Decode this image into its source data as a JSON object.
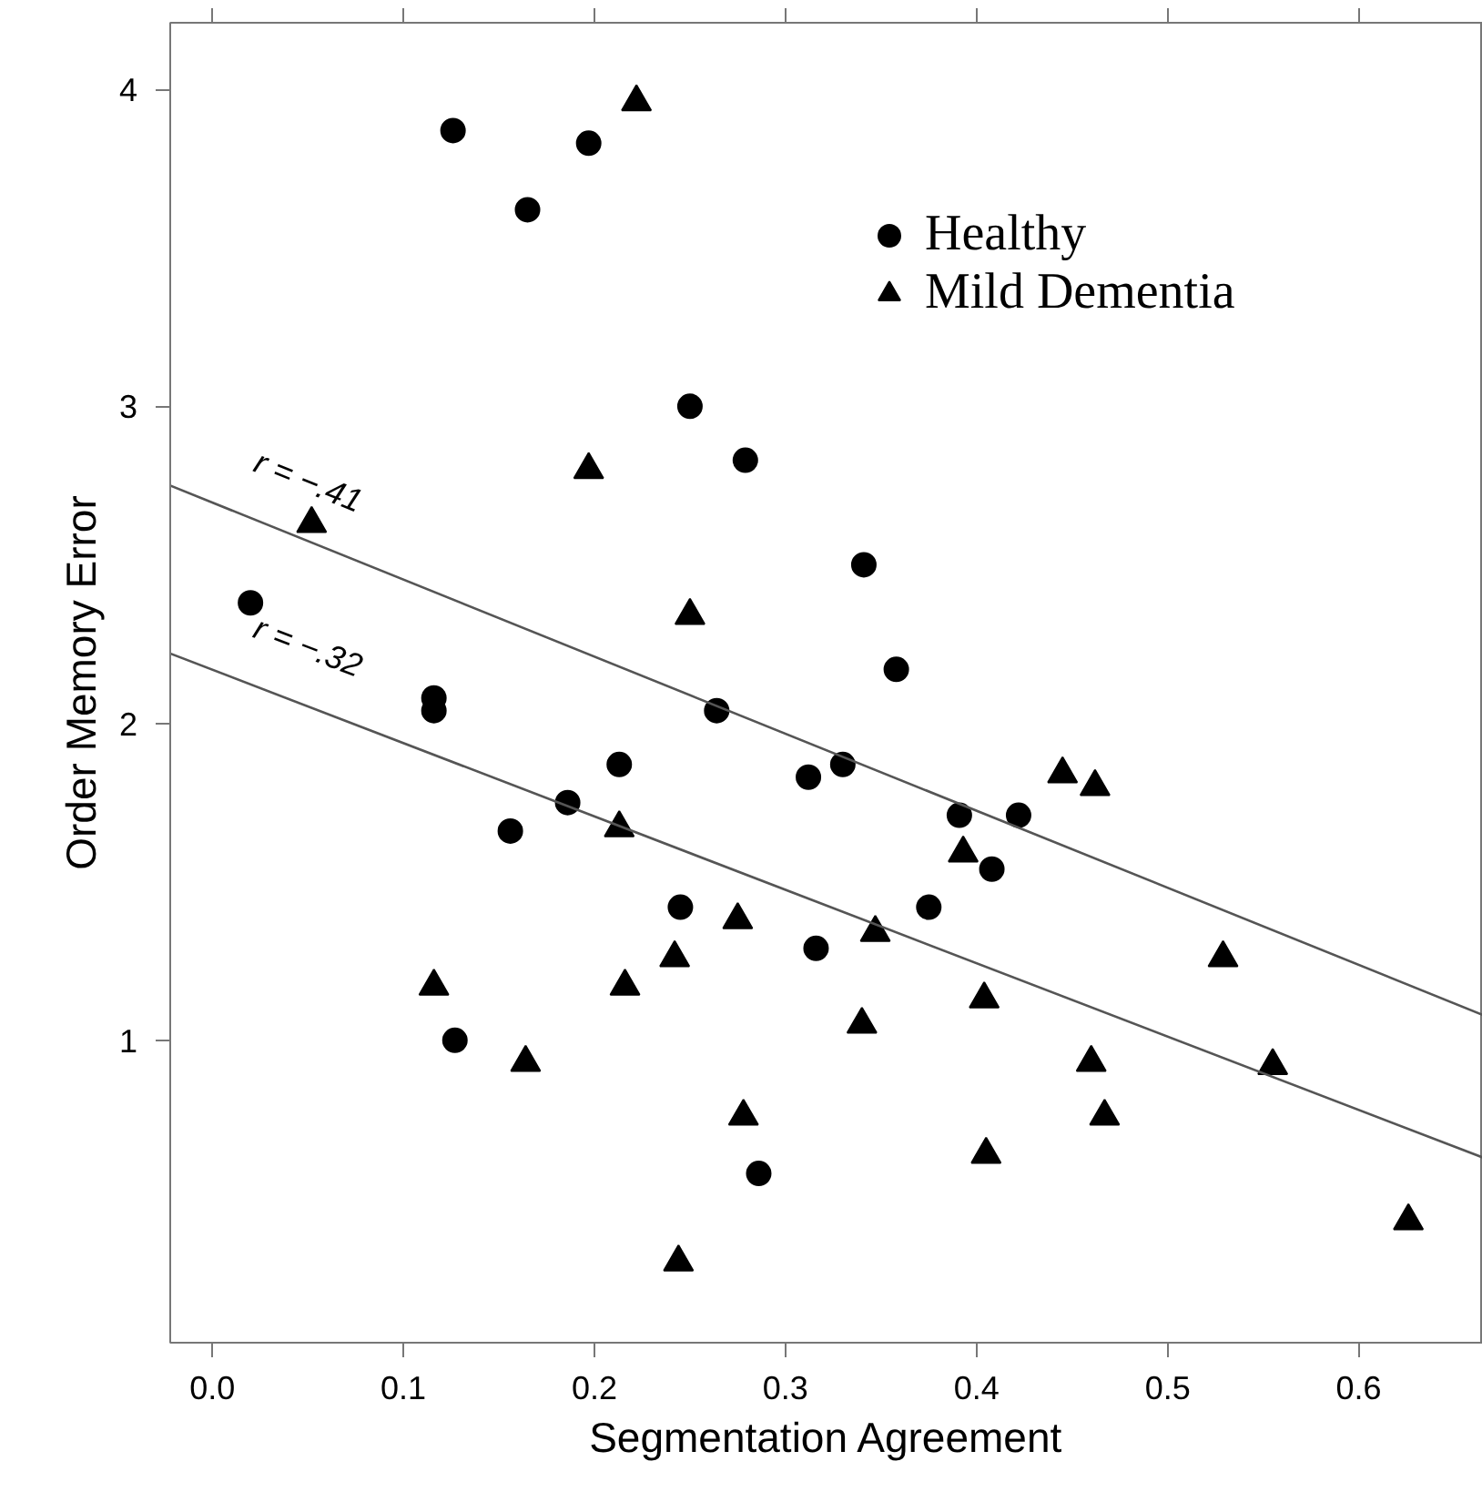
{
  "chart_data": {
    "type": "scatter",
    "xlabel": "Segmentation Agreement",
    "ylabel": "Order Memory Error",
    "xlim": [
      -0.022,
      0.665
    ],
    "ylim": [
      0.046,
      4.21
    ],
    "xticks": [
      {
        "value": 0.0,
        "label": "0.0"
      },
      0.1,
      0.2,
      0.3,
      0.4,
      0.5,
      0.6
    ],
    "yticks": [
      1,
      2,
      3,
      4
    ],
    "grid": false,
    "legend": "top right",
    "series": [
      {
        "name": "Healthy",
        "color": "#000000",
        "marker": "circle",
        "x": [
          0.126,
          0.197,
          0.165,
          0.25,
          0.279,
          0.02,
          0.341,
          0.358,
          0.116,
          0.116,
          0.264,
          0.213,
          0.312,
          0.186,
          0.156,
          0.245,
          0.316,
          0.127,
          0.286,
          0.33,
          0.391,
          0.422,
          0.408,
          0.375
        ],
        "values": [
          3.87,
          3.83,
          3.62,
          3.0,
          2.83,
          2.38,
          2.5,
          2.17,
          2.08,
          2.04,
          2.04,
          1.87,
          1.83,
          1.75,
          1.66,
          1.42,
          1.29,
          1.0,
          0.58,
          1.87,
          1.71,
          1.71,
          1.54,
          1.42
        ]
      },
      {
        "name": "Mild Dementia",
        "color": "#000000",
        "marker": "triangle",
        "x": [
          0.222,
          0.197,
          0.052,
          0.25,
          0.213,
          0.275,
          0.242,
          0.116,
          0.216,
          0.164,
          0.278,
          0.244,
          0.445,
          0.462,
          0.393,
          0.347,
          0.529,
          0.404,
          0.34,
          0.46,
          0.555,
          0.467,
          0.405,
          0.626
        ],
        "values": [
          3.96,
          2.8,
          2.63,
          2.34,
          1.67,
          1.38,
          1.26,
          1.17,
          1.17,
          0.93,
          0.76,
          0.3,
          1.84,
          1.8,
          1.59,
          1.34,
          1.26,
          1.13,
          1.05,
          0.93,
          0.92,
          0.76,
          0.64,
          0.43
        ]
      },
      {
        "type": "line",
        "color": "#555555",
        "x": [
          -0.022,
          0.665
        ],
        "values": [
          2.75,
          1.08
        ]
      },
      {
        "type": "line",
        "color": "#555555",
        "x": [
          -0.022,
          0.665
        ],
        "values": [
          2.22,
          0.63
        ]
      }
    ],
    "annotations": [
      "r = −.41",
      "r = −.32"
    ]
  }
}
